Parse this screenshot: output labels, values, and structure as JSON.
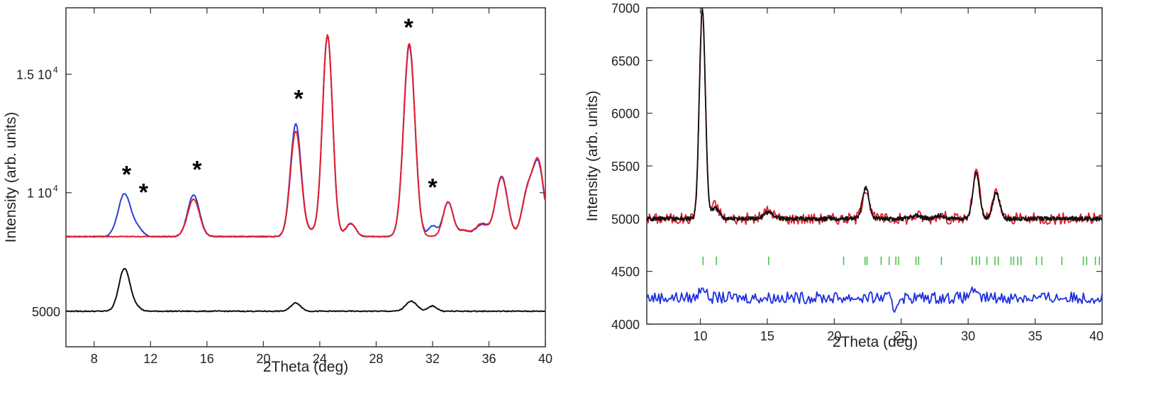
{
  "chart_data": [
    {
      "type": "line",
      "xlabel": "2Theta (deg)",
      "ylabel": "Intensity (arb. units)",
      "xlim": [
        6,
        40
      ],
      "ylim": [
        3500,
        17800
      ],
      "grid": false,
      "legend": "none",
      "x_ticks": [
        8,
        12,
        16,
        20,
        24,
        28,
        32,
        36,
        40
      ],
      "y_ticks": [
        {
          "value": 5000,
          "label": "5000"
        },
        {
          "value": 10000,
          "label": "1 10",
          "exp": "4"
        },
        {
          "value": 15000,
          "label": "1.5 10",
          "exp": "4"
        }
      ],
      "series": [
        {
          "color": "#2b3fd6",
          "role": "pattern-1",
          "baseline": 8150,
          "peaks": [
            [
              10.15,
              1800,
              0.45
            ],
            [
              11.1,
              300,
              0.35
            ],
            [
              15.05,
              1750,
              0.42
            ],
            [
              22.3,
              4750,
              0.38
            ],
            [
              23.4,
              200,
              0.3
            ],
            [
              24.55,
              8480,
              0.36
            ],
            [
              26.2,
              550,
              0.35
            ],
            [
              30.35,
              8050,
              0.4
            ],
            [
              32.0,
              450,
              0.3
            ],
            [
              33.1,
              1450,
              0.35
            ],
            [
              34.2,
              250,
              0.4
            ],
            [
              35.5,
              500,
              0.45
            ],
            [
              36.9,
              2550,
              0.42
            ],
            [
              38.7,
              1750,
              0.38
            ],
            [
              39.5,
              3000,
              0.4
            ]
          ]
        },
        {
          "color": "#e41f2c",
          "role": "pattern-2",
          "baseline": 8150,
          "peaks": [
            [
              15.05,
              1580,
              0.42
            ],
            [
              22.3,
              4450,
              0.38
            ],
            [
              23.4,
              200,
              0.3
            ],
            [
              24.55,
              8500,
              0.36
            ],
            [
              26.2,
              550,
              0.35
            ],
            [
              30.35,
              8150,
              0.4
            ],
            [
              33.1,
              1450,
              0.35
            ],
            [
              34.2,
              250,
              0.4
            ],
            [
              35.5,
              550,
              0.45
            ],
            [
              36.9,
              2500,
              0.42
            ],
            [
              38.7,
              1700,
              0.38
            ],
            [
              39.5,
              3100,
              0.4
            ]
          ]
        },
        {
          "color": "#111111",
          "role": "difference",
          "baseline": 5000,
          "peaks": [
            [
              10.15,
              1800,
              0.4
            ],
            [
              11.0,
              150,
              0.3
            ],
            [
              22.3,
              350,
              0.35
            ],
            [
              30.5,
              420,
              0.4
            ],
            [
              32.0,
              220,
              0.3
            ]
          ]
        }
      ],
      "annotations": [
        {
          "text": "*",
          "x": 10.3,
          "y": 10850
        },
        {
          "text": "*",
          "x": 11.5,
          "y": 10100
        },
        {
          "text": "*",
          "x": 15.3,
          "y": 11050
        },
        {
          "text": "*",
          "x": 22.5,
          "y": 14050
        },
        {
          "text": "*",
          "x": 30.3,
          "y": 17050
        },
        {
          "text": "*",
          "x": 32.0,
          "y": 10300
        }
      ]
    },
    {
      "type": "line",
      "xlabel": "2Theta (deg)",
      "ylabel": "Intensity (arb. units)",
      "xlim": [
        6,
        40
      ],
      "ylim": [
        4000,
        7000
      ],
      "grid": false,
      "legend": "none",
      "x_ticks": [
        10,
        15,
        20,
        25,
        30,
        35,
        40
      ],
      "y_ticks": [
        4000,
        4500,
        5000,
        5500,
        6000,
        6500,
        7000
      ],
      "series": [
        {
          "color": "#e41f2c",
          "role": "observed",
          "baseline": 5000,
          "noise": 55,
          "peaks": [
            [
              10.15,
              2000,
              0.22
            ],
            [
              11.1,
              130,
              0.3
            ],
            [
              15.1,
              80,
              0.35
            ],
            [
              22.35,
              300,
              0.25
            ],
            [
              26.2,
              30,
              0.3
            ],
            [
              27.9,
              40,
              0.3
            ],
            [
              30.6,
              450,
              0.25
            ],
            [
              32.1,
              260,
              0.25
            ]
          ]
        },
        {
          "color": "#111111",
          "role": "calculated",
          "baseline": 5000,
          "peaks": [
            [
              10.15,
              2000,
              0.22
            ],
            [
              11.1,
              100,
              0.3
            ],
            [
              15.1,
              60,
              0.35
            ],
            [
              22.35,
              290,
              0.25
            ],
            [
              26.2,
              30,
              0.3
            ],
            [
              27.9,
              30,
              0.3
            ],
            [
              30.6,
              430,
              0.25
            ],
            [
              32.1,
              250,
              0.25
            ]
          ]
        },
        {
          "color": "#1f30e0",
          "role": "difference",
          "baseline": 4250,
          "noise": 55,
          "peaks": [
            [
              10.15,
              120,
              0.2
            ],
            [
              24.5,
              -120,
              0.15
            ],
            [
              30.3,
              100,
              0.15
            ]
          ]
        }
      ],
      "reflections": {
        "color": "#3fbf3f",
        "y_center": 4600,
        "positions": [
          10.2,
          11.2,
          15.1,
          20.7,
          22.3,
          22.45,
          23.5,
          24.1,
          24.6,
          24.8,
          26.1,
          26.3,
          28.0,
          30.3,
          30.6,
          30.85,
          31.4,
          32.0,
          32.25,
          33.2,
          33.4,
          33.7,
          33.95,
          35.1,
          35.5,
          37.0,
          38.6,
          38.85,
          39.5,
          39.8
        ]
      }
    }
  ]
}
